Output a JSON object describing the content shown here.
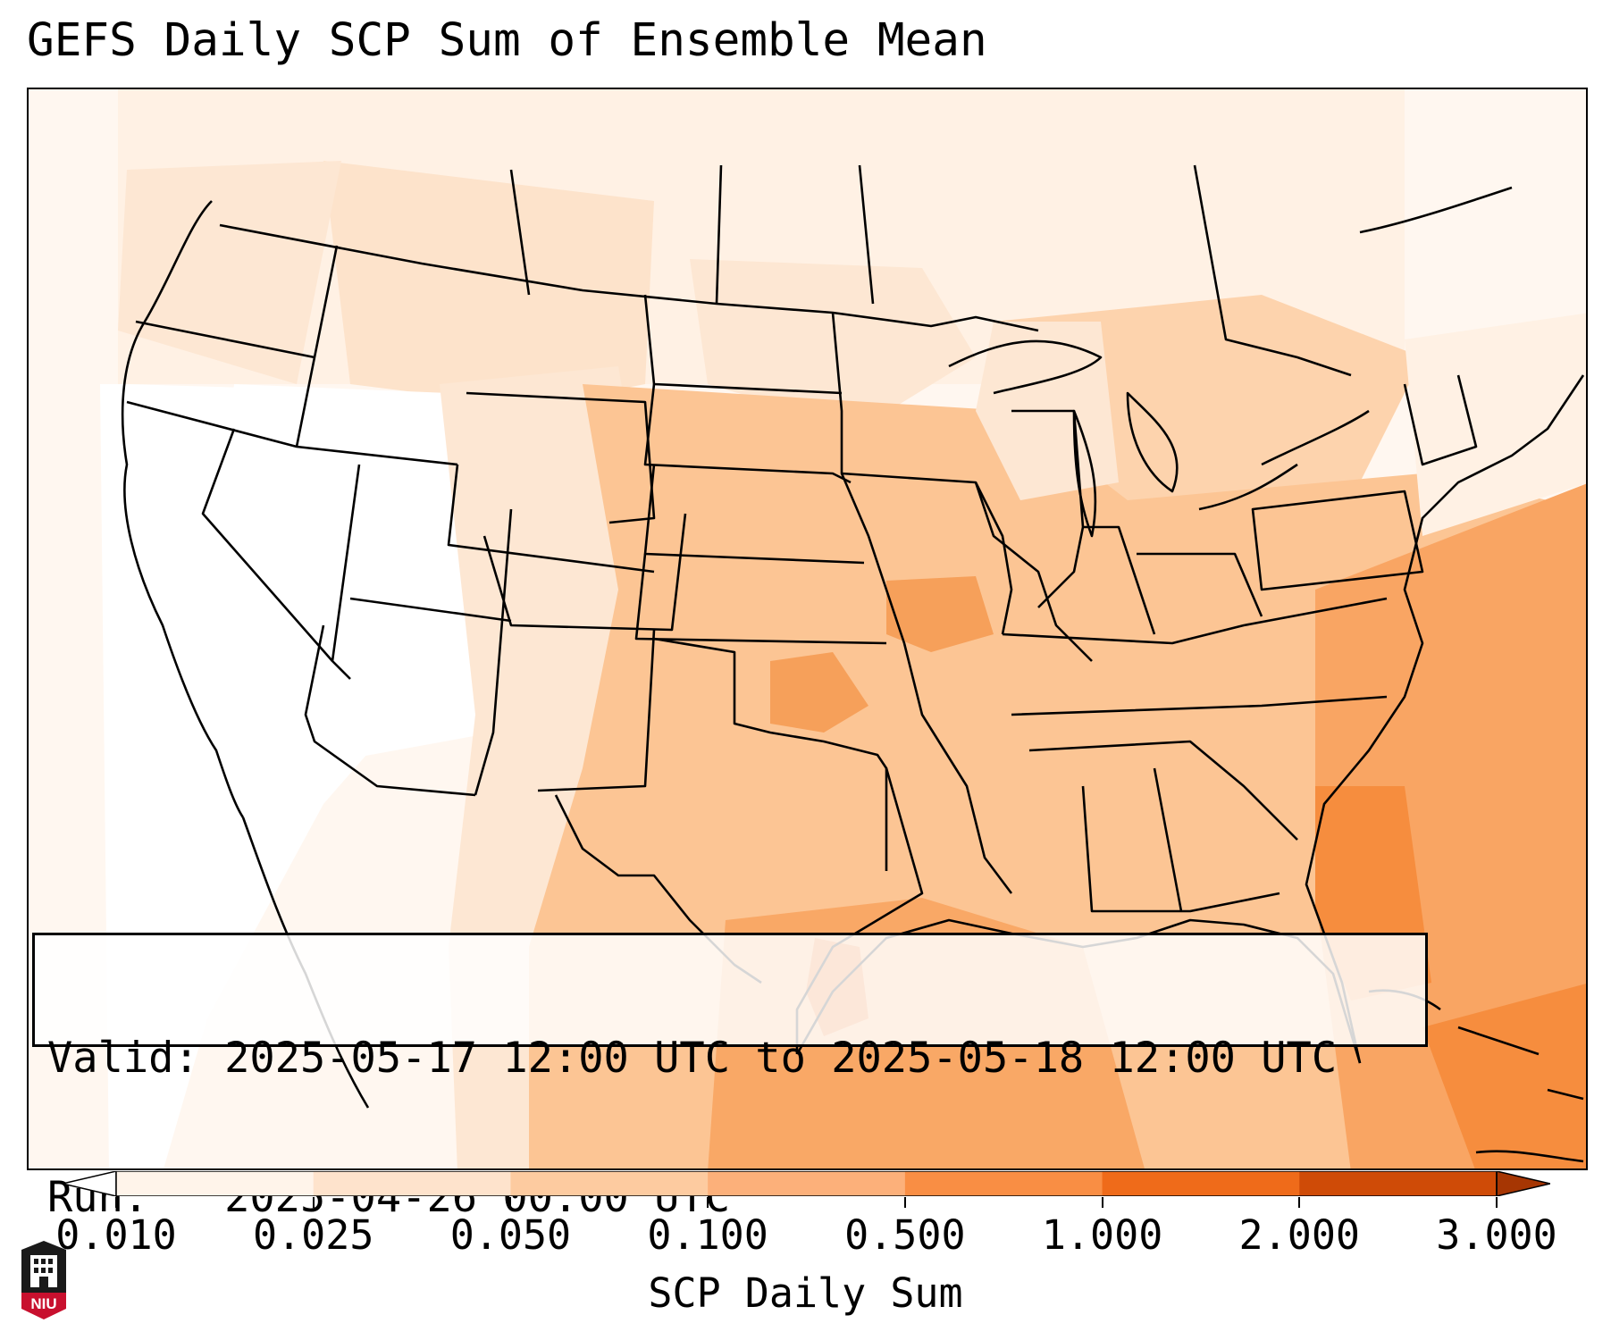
{
  "title": "GEFS Daily SCP Sum of Ensemble Mean",
  "info": {
    "valid_label": "Valid:",
    "valid_value": "2025-05-17 12:00 UTC to 2025-05-18 12:00 UTC",
    "run_label": "Run:",
    "run_value": "2025-04-26 00:00 UTC"
  },
  "colorbar": {
    "label": "SCP Daily Sum",
    "ticks": [
      "0.010",
      "0.025",
      "0.050",
      "0.100",
      "0.500",
      "1.000",
      "2.000",
      "3.000"
    ],
    "colors": [
      "#ffffff",
      "#fff4ea",
      "#fee3cc",
      "#fdcba0",
      "#fcb07a",
      "#f98e44",
      "#ef6b1a",
      "#cf4b07",
      "#a63603"
    ],
    "extend": "both"
  },
  "map": {
    "projection": "Lambert conformal, CONUS",
    "fill_colors": {
      "none": "#ffffff",
      "very_low": "#fff5ec",
      "low": "#fde3cb",
      "mid": "#fcc594",
      "high": "#f9b077",
      "higher": "#f68d3e",
      "peak": "#ea6a17"
    },
    "border_color": "#000000"
  },
  "logo": {
    "text": "NIU",
    "colors": {
      "crest": "#1a1a1a",
      "banner": "#c8102e"
    }
  }
}
